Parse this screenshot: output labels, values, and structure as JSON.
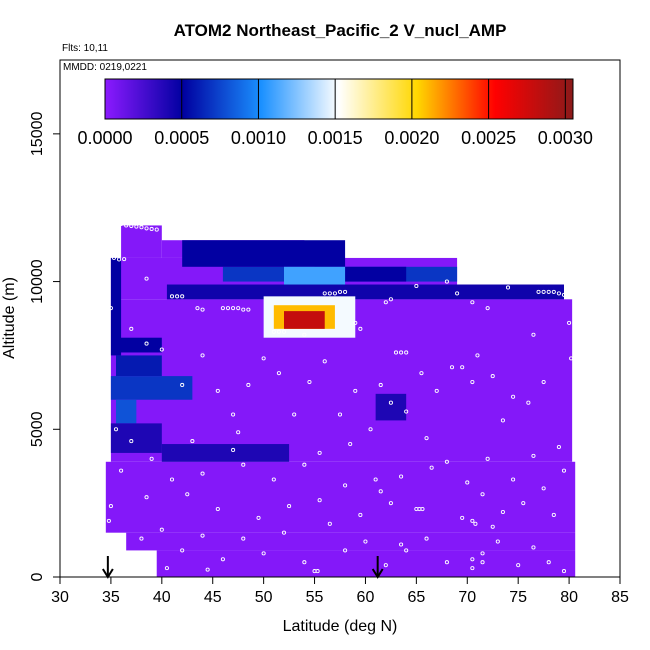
{
  "chart_data": {
    "type": "heatmap",
    "title": "ATOM2 Northeast_Pacific_2 V_nucl_AMP",
    "annotations": [
      "Flts: 10,11",
      "MMDD: 0219,0221"
    ],
    "xlabel": "Latitude (deg N)",
    "ylabel": "Altitude (m)",
    "xlim": [
      30,
      85
    ],
    "ylim": [
      0,
      17500
    ],
    "x_ticks": [
      "30",
      "35",
      "40",
      "45",
      "50",
      "55",
      "60",
      "65",
      "70",
      "75",
      "80",
      "85"
    ],
    "y_ticks": [
      "0",
      "5000",
      "10000",
      "15000"
    ],
    "colorbar": {
      "range": [
        0,
        0.00305
      ],
      "ticks": [
        "0.0000",
        "0.0005",
        "0.0010",
        "0.0015",
        "0.0020",
        "0.0025",
        "0.0030"
      ],
      "placement": "top",
      "colors": [
        "#8c1aff",
        "#0000a0",
        "#1a90ff",
        "#ffffff",
        "#ffd700",
        "#ff0000",
        "#8b1a1a"
      ]
    },
    "grid": false,
    "background_value": 3e-05,
    "coverage": [
      {
        "x0": 34.5,
        "x1": 80.6,
        "y0": 1500,
        "y1": 3900
      },
      {
        "x0": 36.5,
        "x1": 80.6,
        "y0": 900,
        "y1": 1500
      },
      {
        "x0": 39.5,
        "x1": 80.6,
        "y0": 0,
        "y1": 900
      },
      {
        "x0": 35.0,
        "x1": 80.3,
        "y0": 3900,
        "y1": 9400
      },
      {
        "x0": 35.0,
        "x1": 69.0,
        "y0": 9400,
        "y1": 10800
      },
      {
        "x0": 69.0,
        "x1": 79.5,
        "y0": 9400,
        "y1": 9900
      },
      {
        "x0": 40.0,
        "x1": 54.0,
        "y0": 10800,
        "y1": 11400
      },
      {
        "x0": 36.0,
        "x1": 40.0,
        "y0": 10800,
        "y1": 11900
      }
    ],
    "patches": [
      {
        "x0": 46.0,
        "x1": 69.0,
        "y0": 10000,
        "y1": 10500,
        "value": 0.0007
      },
      {
        "x0": 55.0,
        "x1": 64.0,
        "y0": 10000,
        "y1": 10500,
        "value": 0.0005
      },
      {
        "x0": 42.0,
        "x1": 58.0,
        "y0": 10500,
        "y1": 11400,
        "value": 0.0005
      },
      {
        "x0": 52.0,
        "x1": 58.0,
        "y0": 9100,
        "y1": 10500,
        "value": 0.0011
      },
      {
        "x0": 40.5,
        "x1": 79.5,
        "y0": 9400,
        "y1": 9900,
        "value": 0.00045
      },
      {
        "x0": 50.0,
        "x1": 59.0,
        "y0": 8100,
        "y1": 9500,
        "value": 0.0015
      },
      {
        "x0": 51.0,
        "x1": 57.0,
        "y0": 8400,
        "y1": 9200,
        "value": 0.0021
      },
      {
        "x0": 52.0,
        "x1": 56.0,
        "y0": 8400,
        "y1": 9000,
        "value": 0.0028
      },
      {
        "x0": 35.0,
        "x1": 36.0,
        "y0": 7500,
        "y1": 10800,
        "value": 0.0005
      },
      {
        "x0": 35.5,
        "x1": 40.0,
        "y0": 7600,
        "y1": 8100,
        "value": 0.0005
      },
      {
        "x0": 35.5,
        "x1": 40.0,
        "y0": 6800,
        "y1": 7500,
        "value": 0.0006
      },
      {
        "x0": 35.0,
        "x1": 43.0,
        "y0": 6000,
        "y1": 6800,
        "value": 0.0007
      },
      {
        "x0": 35.5,
        "x1": 37.5,
        "y0": 5200,
        "y1": 6000,
        "value": 0.0008
      },
      {
        "x0": 35.0,
        "x1": 40.0,
        "y0": 4200,
        "y1": 5200,
        "value": 0.0004
      },
      {
        "x0": 40.0,
        "x1": 52.5,
        "y0": 3900,
        "y1": 4500,
        "value": 0.0004
      },
      {
        "x0": 61.0,
        "x1": 64.0,
        "y0": 5300,
        "y1": 6200,
        "value": 0.0004
      }
    ],
    "arrows_at_latitude": [
      34.7,
      61.2
    ],
    "flight_track_points": [
      [
        35.5,
        12000
      ],
      [
        36.0,
        11950
      ],
      [
        36.5,
        11900
      ],
      [
        37.0,
        11880
      ],
      [
        37.5,
        11860
      ],
      [
        38.0,
        11840
      ],
      [
        38.5,
        11800
      ],
      [
        39.0,
        11780
      ],
      [
        39.5,
        11760
      ],
      [
        35.3,
        10800
      ],
      [
        35.8,
        10750
      ],
      [
        36.3,
        10760
      ],
      [
        38.5,
        10100
      ],
      [
        41.0,
        9500
      ],
      [
        41.5,
        9500
      ],
      [
        42.0,
        9500
      ],
      [
        43.5,
        9100
      ],
      [
        44.0,
        9050
      ],
      [
        46.0,
        9100
      ],
      [
        46.5,
        9100
      ],
      [
        47.0,
        9100
      ],
      [
        47.5,
        9100
      ],
      [
        48.0,
        9050
      ],
      [
        48.5,
        9050
      ],
      [
        51.0,
        8300
      ],
      [
        51.5,
        8300
      ],
      [
        52.0,
        8300
      ],
      [
        54.0,
        8200
      ],
      [
        56.0,
        9600
      ],
      [
        56.5,
        9600
      ],
      [
        57.0,
        9600
      ],
      [
        57.5,
        9650
      ],
      [
        58.0,
        9650
      ],
      [
        59.0,
        8600
      ],
      [
        59.5,
        8400
      ],
      [
        62.0,
        9300
      ],
      [
        62.5,
        9400
      ],
      [
        63.0,
        7600
      ],
      [
        63.5,
        7600
      ],
      [
        64.0,
        7600
      ],
      [
        65.0,
        9850
      ],
      [
        68.0,
        10000
      ],
      [
        69.0,
        9600
      ],
      [
        70.5,
        9300
      ],
      [
        72.0,
        9100
      ],
      [
        74.0,
        9800
      ],
      [
        76.5,
        8200
      ],
      [
        77.0,
        9650
      ],
      [
        77.5,
        9650
      ],
      [
        78.0,
        9650
      ],
      [
        78.5,
        9650
      ],
      [
        79.0,
        9600
      ],
      [
        79.5,
        9550
      ],
      [
        80.0,
        8600
      ],
      [
        80.2,
        7400
      ],
      [
        35.0,
        9100
      ],
      [
        37.0,
        8400
      ],
      [
        38.5,
        7900
      ],
      [
        40.0,
        7700
      ],
      [
        42.0,
        6500
      ],
      [
        44.0,
        7500
      ],
      [
        45.5,
        6300
      ],
      [
        47.0,
        5500
      ],
      [
        48.5,
        6500
      ],
      [
        50.0,
        7400
      ],
      [
        51.5,
        6900
      ],
      [
        53.0,
        5500
      ],
      [
        54.5,
        6600
      ],
      [
        56.0,
        7300
      ],
      [
        57.5,
        5500
      ],
      [
        59.0,
        6300
      ],
      [
        60.5,
        5000
      ],
      [
        61.5,
        6500
      ],
      [
        62.5,
        5900
      ],
      [
        64.0,
        5600
      ],
      [
        65.5,
        6900
      ],
      [
        67.0,
        6300
      ],
      [
        68.5,
        7100
      ],
      [
        69.5,
        7100
      ],
      [
        70.5,
        6600
      ],
      [
        71.0,
        7500
      ],
      [
        72.5,
        6800
      ],
      [
        73.5,
        5300
      ],
      [
        74.5,
        6100
      ],
      [
        76.0,
        5900
      ],
      [
        77.5,
        6600
      ],
      [
        79.0,
        4400
      ],
      [
        35.5,
        5000
      ],
      [
        37.0,
        4600
      ],
      [
        39.0,
        4000
      ],
      [
        41.0,
        3300
      ],
      [
        42.5,
        2800
      ],
      [
        44.0,
        3500
      ],
      [
        45.5,
        2300
      ],
      [
        47.0,
        4300
      ],
      [
        48.0,
        3800
      ],
      [
        49.5,
        2000
      ],
      [
        51.0,
        3300
      ],
      [
        52.5,
        2400
      ],
      [
        54.0,
        3800
      ],
      [
        55.5,
        2600
      ],
      [
        56.5,
        1800
      ],
      [
        58.0,
        3100
      ],
      [
        59.5,
        2100
      ],
      [
        61.0,
        3300
      ],
      [
        61.5,
        2900
      ],
      [
        62.5,
        2500
      ],
      [
        63.5,
        3400
      ],
      [
        65.0,
        2300
      ],
      [
        65.3,
        2300
      ],
      [
        65.6,
        2300
      ],
      [
        66.5,
        3700
      ],
      [
        68.0,
        3900
      ],
      [
        69.5,
        2000
      ],
      [
        70.0,
        3200
      ],
      [
        70.5,
        1900
      ],
      [
        70.8,
        1800
      ],
      [
        71.5,
        2800
      ],
      [
        72.5,
        1700
      ],
      [
        73.5,
        2200
      ],
      [
        74.5,
        3300
      ],
      [
        75.5,
        2500
      ],
      [
        76.5,
        4100
      ],
      [
        77.5,
        3000
      ],
      [
        78.5,
        2100
      ],
      [
        79.5,
        3600
      ],
      [
        35.0,
        2400
      ],
      [
        34.8,
        1900
      ],
      [
        36.0,
        3600
      ],
      [
        38.5,
        2700
      ],
      [
        40.0,
        1600
      ],
      [
        42.0,
        900
      ],
      [
        44.0,
        1400
      ],
      [
        46.0,
        600
      ],
      [
        48.0,
        1300
      ],
      [
        50.0,
        800
      ],
      [
        52.0,
        1500
      ],
      [
        54.0,
        500
      ],
      [
        55.0,
        200
      ],
      [
        55.3,
        200
      ],
      [
        58.0,
        900
      ],
      [
        60.0,
        1200
      ],
      [
        62.0,
        400
      ],
      [
        63.5,
        1100
      ],
      [
        64.0,
        900
      ],
      [
        66.0,
        1300
      ],
      [
        68.0,
        500
      ],
      [
        70.5,
        300
      ],
      [
        70.5,
        600
      ],
      [
        71.5,
        500
      ],
      [
        71.5,
        800
      ],
      [
        73.0,
        1200
      ],
      [
        75.0,
        400
      ],
      [
        76.5,
        1000
      ],
      [
        78.0,
        500
      ],
      [
        79.5,
        200
      ],
      [
        40.5,
        300
      ],
      [
        44.5,
        250
      ],
      [
        38.0,
        1300
      ],
      [
        43.0,
        4600
      ],
      [
        47.5,
        4900
      ],
      [
        55.5,
        4200
      ],
      [
        58.5,
        4500
      ],
      [
        66.0,
        4700
      ],
      [
        72.0,
        4000
      ]
    ]
  }
}
